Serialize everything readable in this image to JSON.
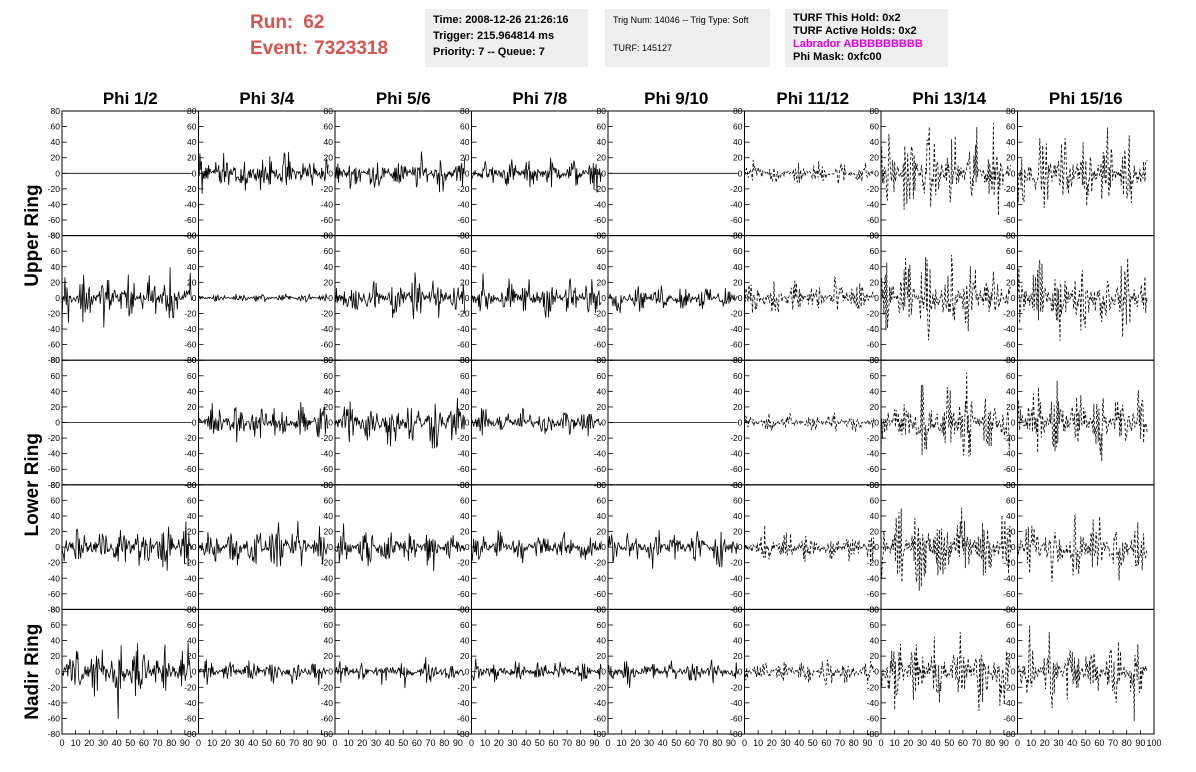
{
  "header": {
    "run_label": "Run:",
    "run_value": "62",
    "event_label": "Event:",
    "event_value": "7323318"
  },
  "info_time": {
    "time": "Time: 2008-12-26 21:26:16",
    "trigger": "Trigger: 215.964814 ms",
    "priority": "Priority: 7 -- Queue: 7"
  },
  "info_trig": {
    "trig": "Trig Num: 14046 -- Trig Type: Soft",
    "turf": "TURF: 145127"
  },
  "info_turf": {
    "this_hold": "TURF This Hold: 0x2",
    "active_holds": "TURF Active Holds: 0x2",
    "labrador": "Labrador ABBBBBBBBB",
    "phi_mask": "Phi Mask: 0xfc00"
  },
  "colors": {
    "run_text": "#d9534f",
    "labrador": "#e600e6",
    "trace": "#000000",
    "info_bg": "#eeeeee"
  },
  "chart_data": {
    "type": "line",
    "columns": [
      "Phi 1/2",
      "Phi 3/4",
      "Phi 5/6",
      "Phi 7/8",
      "Phi 9/10",
      "Phi 11/12",
      "Phi 13/14",
      "Phi 15/16"
    ],
    "ring_labels": [
      "Upper Ring",
      "Lower Ring",
      "Nadir Ring"
    ],
    "rows_per_ring": [
      2,
      2,
      1
    ],
    "xlim": [
      0,
      100
    ],
    "ylim": [
      -80,
      80
    ],
    "y_ticks": [
      "80",
      "60",
      "40",
      "20",
      "0",
      "-20",
      "-40",
      "-60",
      "-80"
    ],
    "x_tick_labels": [
      "0",
      "10",
      "20",
      "30",
      "40",
      "50",
      "60",
      "70",
      "80",
      "90",
      "100"
    ],
    "dashed_columns": [
      5,
      6,
      7
    ],
    "amplitudes": [
      [
        0,
        14,
        12,
        10,
        0,
        8,
        28,
        24
      ],
      [
        18,
        3,
        14,
        14,
        9,
        14,
        26,
        24
      ],
      [
        0,
        14,
        18,
        10,
        0,
        7,
        24,
        24
      ],
      [
        16,
        16,
        14,
        12,
        12,
        12,
        26,
        22
      ],
      [
        22,
        8,
        8,
        8,
        8,
        10,
        24,
        26
      ]
    ]
  }
}
